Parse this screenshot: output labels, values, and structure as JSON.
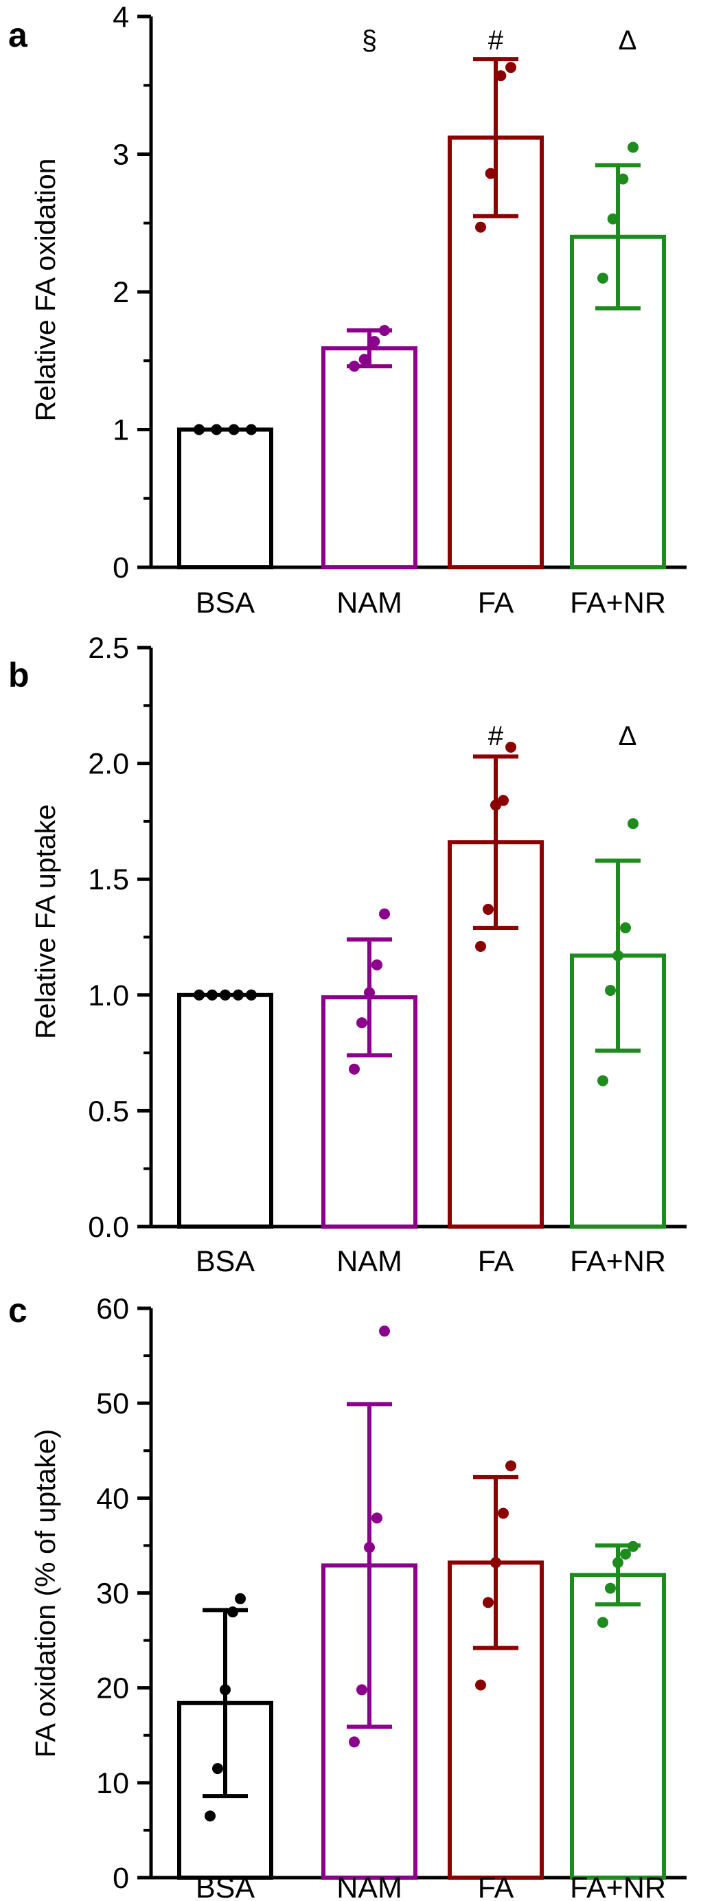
{
  "figure": {
    "category_colors": [
      "#000000",
      "#8B008B",
      "#8B0000",
      "#1E8B1E"
    ]
  },
  "chart_data": [
    {
      "type": "bar",
      "panel_label": "a",
      "title": "",
      "xlabel": "",
      "ylabel": "Relative FA oxidation",
      "categories": [
        "BSA",
        "NAM",
        "FA",
        "FA+NR"
      ],
      "ylim": [
        0,
        4
      ],
      "yticks": [
        0,
        1,
        2,
        3,
        4
      ],
      "ytick_labels": [
        "0",
        "1",
        "2",
        "3",
        "4"
      ],
      "series": [
        {
          "name": "mean",
          "values": [
            1.0,
            1.59,
            3.12,
            2.4
          ],
          "error_sd": [
            0.0,
            0.13,
            0.57,
            0.52
          ],
          "points": [
            [
              1.0,
              1.0,
              1.0,
              1.0
            ],
            [
              1.46,
              1.51,
              1.64,
              1.72
            ],
            [
              2.47,
              2.86,
              3.57,
              3.63
            ],
            [
              2.1,
              2.53,
              2.82,
              3.05
            ]
          ]
        }
      ],
      "annotations": [
        "",
        "§",
        "#",
        "Δ"
      ]
    },
    {
      "type": "bar",
      "panel_label": "b",
      "title": "",
      "xlabel": "",
      "ylabel": "Relative FA uptake",
      "categories": [
        "BSA",
        "NAM",
        "FA",
        "FA+NR"
      ],
      "ylim": [
        0,
        2.5
      ],
      "yticks": [
        0,
        0.5,
        1.0,
        1.5,
        2.0,
        2.5
      ],
      "ytick_labels": [
        "0.0",
        "0.5",
        "1.0",
        "1.5",
        "2.0",
        "2.5"
      ],
      "series": [
        {
          "name": "mean",
          "values": [
            1.0,
            0.99,
            1.66,
            1.17
          ],
          "error_sd": [
            0.0,
            0.25,
            0.37,
            0.41
          ],
          "points": [
            [
              1.0,
              1.0,
              1.0,
              1.0,
              1.0
            ],
            [
              0.68,
              0.88,
              1.01,
              1.13,
              1.35
            ],
            [
              1.21,
              1.37,
              1.82,
              1.84,
              2.07
            ],
            [
              0.63,
              1.02,
              1.17,
              1.29,
              1.74
            ]
          ]
        }
      ],
      "annotations": [
        "",
        "",
        "#",
        "Δ"
      ]
    },
    {
      "type": "bar",
      "panel_label": "c",
      "title": "",
      "xlabel": "",
      "ylabel": "FA oxidation (% of uptake)",
      "categories": [
        "BSA",
        "NAM",
        "FA",
        "FA+NR"
      ],
      "ylim": [
        0,
        60
      ],
      "yticks": [
        0,
        10,
        20,
        30,
        40,
        50,
        60
      ],
      "ytick_labels": [
        "0",
        "10",
        "20",
        "30",
        "40",
        "50",
        "60"
      ],
      "series": [
        {
          "name": "mean",
          "values": [
            18.4,
            32.9,
            33.2,
            31.9
          ],
          "error_sd": [
            9.8,
            17.0,
            9.0,
            3.1
          ],
          "points": [
            [
              6.5,
              11.5,
              19.8,
              28.0,
              29.4
            ],
            [
              14.3,
              19.8,
              34.8,
              37.9,
              57.6
            ],
            [
              20.3,
              29.0,
              33.2,
              38.4,
              43.4
            ],
            [
              26.9,
              30.5,
              33.2,
              34.1,
              34.9
            ]
          ]
        }
      ],
      "annotations": [
        "",
        "",
        "",
        ""
      ]
    }
  ]
}
